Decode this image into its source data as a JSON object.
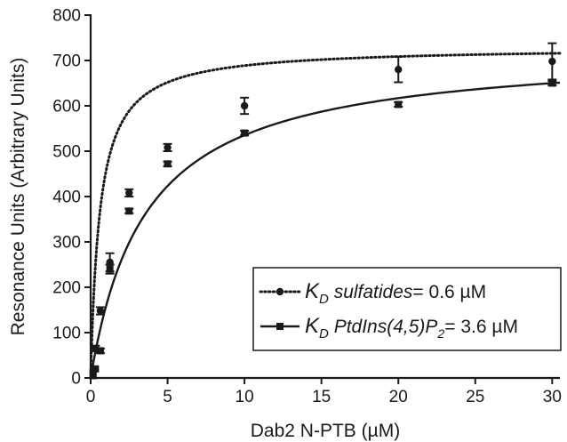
{
  "chart_data": {
    "type": "scatter",
    "xlabel": "Dab2 N-PTB (µM)",
    "ylabel": "Resonance Units (Arbitrary Units)",
    "xlim": [
      0,
      30.5
    ],
    "ylim": [
      0,
      800
    ],
    "xticks": [
      0,
      5,
      10,
      15,
      20,
      25,
      30
    ],
    "yticks": [
      0,
      100,
      200,
      300,
      400,
      500,
      600,
      700,
      800
    ],
    "grid": false,
    "legend_position": "bottom-right",
    "series": [
      {
        "name": "K_D sulfatides = 0.6 µM",
        "legend": {
          "k": "K",
          "sub": "D",
          "text": "sulfatides",
          "value": "= 0.6 µM"
        },
        "marker": "circle",
        "line": "dotted",
        "color": "#1a1a1a",
        "kd": 0.6,
        "bmax": 730,
        "x": [
          0.16,
          0.31,
          0.63,
          1.25,
          2.5,
          5.0,
          10.0,
          20.0,
          30.0
        ],
        "y": [
          15,
          65,
          148,
          255,
          408,
          508,
          600,
          680,
          698
        ],
        "err": [
          3,
          6,
          8,
          20,
          8,
          8,
          18,
          28,
          40
        ]
      },
      {
        "name": "K_D PtdIns(4,5)P2 = 3.6 µM",
        "legend": {
          "k": "K",
          "sub": "D",
          "text": "PtdIns(4,5)P",
          "sub2": "2",
          "value": "= 3.6 µM"
        },
        "marker": "square",
        "line": "solid",
        "color": "#1a1a1a",
        "kd": 3.6,
        "bmax": 728,
        "x": [
          0.16,
          0.31,
          0.63,
          1.25,
          2.5,
          5.0,
          10.0,
          20.0,
          30.0
        ],
        "y": [
          5,
          20,
          60,
          240,
          368,
          472,
          540,
          603,
          650
        ],
        "err": [
          2,
          3,
          5,
          10,
          5,
          5,
          5,
          5,
          5
        ]
      }
    ]
  }
}
